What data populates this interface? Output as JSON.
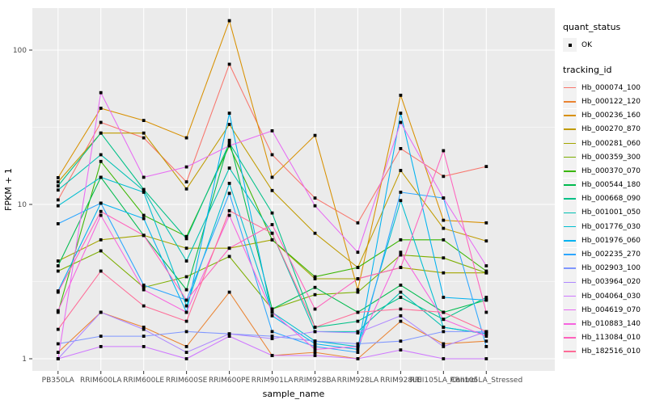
{
  "legend": {
    "quant_status_title": "quant_status",
    "ok_label": "OK",
    "tracking_title": "tracking_id"
  },
  "chart_data": {
    "type": "line",
    "title": "",
    "xlabel": "sample_name",
    "ylabel": "FPKM + 1",
    "yscale": "log10",
    "ylim": [
      0.85,
      185
    ],
    "grid": "on",
    "legend_position": "right",
    "point_shape": "filled-black-square",
    "point_status_legend": {
      "title": "quant_status",
      "items": [
        "OK"
      ]
    },
    "y_ticks": [
      {
        "label": "100",
        "value": 100
      },
      {
        "label": "10",
        "value": 10
      },
      {
        "label": "1",
        "value": 1
      }
    ],
    "y_minor_gridline_values": [
      31.623,
      3.1623
    ],
    "x_categories": [
      "PB350LA",
      "RRIM600LA",
      "RRIM600LE",
      "RRIM600SE",
      "RRIM600PE",
      "RRIM901LA",
      "RRIM928BA",
      "RRIM928LA",
      "RRIM928LE",
      "RRII105LA_Control",
      "RRII105LA_Stressed"
    ],
    "series": [
      {
        "name": "Hb_000074_100",
        "color": "#F8766D",
        "values": [
          10.7,
          34,
          27,
          14,
          81,
          21,
          11,
          7.6,
          23,
          15.2,
          17.6
        ]
      },
      {
        "name": "Hb_000122_120",
        "color": "#EA8331",
        "values": [
          1.1,
          2.0,
          1.6,
          1.2,
          2.7,
          1.05,
          1.1,
          1.0,
          1.75,
          1.25,
          1.3
        ]
      },
      {
        "name": "Hb_000236_160",
        "color": "#D89000",
        "values": [
          14.9,
          42,
          35,
          27,
          155,
          15,
          28,
          2.8,
          51,
          7.9,
          7.6
        ]
      },
      {
        "name": "Hb_000270_870",
        "color": "#C09B00",
        "values": [
          14,
          29,
          29,
          12.6,
          33,
          12.3,
          6.5,
          3.9,
          16.6,
          7.0,
          5.8
        ]
      },
      {
        "name": "Hb_000281_060",
        "color": "#A3A500",
        "values": [
          4.3,
          5.9,
          6.3,
          5.2,
          5.2,
          5.9,
          3.3,
          3.3,
          3.9,
          3.6,
          3.6
        ]
      },
      {
        "name": "Hb_000359_300",
        "color": "#7CAE00",
        "values": [
          3.7,
          5.0,
          2.9,
          3.4,
          4.6,
          2.1,
          2.6,
          2.7,
          4.7,
          4.5,
          3.6
        ]
      },
      {
        "name": "Hb_000370_070",
        "color": "#39B600",
        "values": [
          2.0,
          19,
          8.5,
          6.2,
          24,
          5.9,
          3.4,
          3.9,
          5.9,
          5.9,
          3.7
        ]
      },
      {
        "name": "Hb_000544_180",
        "color": "#00BB4E",
        "values": [
          4.0,
          15,
          6.3,
          2.8,
          26,
          2.1,
          2.9,
          2.0,
          3.0,
          2.0,
          2.4
        ]
      },
      {
        "name": "Hb_000668_090",
        "color": "#00C087",
        "values": [
          13.2,
          29,
          12.5,
          6.0,
          25,
          8.8,
          1.6,
          1.75,
          2.5,
          1.8,
          2.5
        ]
      },
      {
        "name": "Hb_001001_050",
        "color": "#00C0B2",
        "values": [
          12.4,
          21,
          12.3,
          4.3,
          17.2,
          6.5,
          1.5,
          1.5,
          2.7,
          1.6,
          1.45
        ]
      },
      {
        "name": "Hb_001776_030",
        "color": "#00BED1",
        "values": [
          9.8,
          15,
          12,
          2.2,
          13.7,
          2.0,
          1.3,
          1.2,
          10.6,
          1.6,
          1.45
        ]
      },
      {
        "name": "Hb_001976_060",
        "color": "#00B2F0",
        "values": [
          2.75,
          10.2,
          8.1,
          2.0,
          39,
          1.9,
          1.25,
          1.15,
          39,
          2.5,
          2.4
        ]
      },
      {
        "name": "Hb_002235_270",
        "color": "#2DA6FF",
        "values": [
          7.5,
          10.2,
          3.0,
          2.4,
          11.8,
          1.5,
          1.2,
          1.1,
          12,
          11,
          1.2
        ]
      },
      {
        "name": "Hb_002903_100",
        "color": "#7F96FF",
        "values": [
          1.25,
          1.4,
          1.4,
          1.5,
          1.45,
          1.4,
          1.3,
          1.25,
          1.3,
          1.5,
          1.5
        ]
      },
      {
        "name": "Hb_003964_020",
        "color": "#AE87FF",
        "values": [
          1.0,
          2.0,
          1.55,
          1.1,
          1.45,
          1.35,
          1.5,
          1.47,
          1.9,
          1.2,
          1.5
        ]
      },
      {
        "name": "Hb_004064_030",
        "color": "#CF78FF",
        "values": [
          1.0,
          1.2,
          1.2,
          1.0,
          1.4,
          1.05,
          1.05,
          1.0,
          1.14,
          1.0,
          1.0
        ]
      },
      {
        "name": "Hb_004619_070",
        "color": "#E76BF3",
        "values": [
          1.0,
          53,
          15,
          17.5,
          24,
          30,
          9.8,
          4.9,
          34,
          11,
          4.0
        ]
      },
      {
        "name": "Hb_010883_140",
        "color": "#F763DF",
        "values": [
          2.05,
          8.5,
          2.8,
          2.0,
          8.5,
          2.0,
          1.15,
          1.2,
          4.9,
          1.8,
          1.4
        ]
      },
      {
        "name": "Hb_113084_010",
        "color": "#FF62BD",
        "values": [
          2.7,
          9.0,
          6.3,
          2.4,
          5.2,
          7.4,
          2.1,
          3.3,
          3.9,
          22.3,
          2.0
        ]
      },
      {
        "name": "Hb_182516_010",
        "color": "#FF6B97",
        "values": [
          1.55,
          3.7,
          2.2,
          1.75,
          9.1,
          6.5,
          1.6,
          2.0,
          2.1,
          2.0,
          1.5
        ]
      }
    ],
    "style": {
      "panel_bg": "#EBEBEB",
      "gridline_color": "#FFFFFF",
      "tick_color": "#333333",
      "tick_label_color": "#4D4D4D",
      "axis_title_color": "#000000",
      "legend_key_bg": "#F2F2F2",
      "point_color": "#000000"
    }
  }
}
